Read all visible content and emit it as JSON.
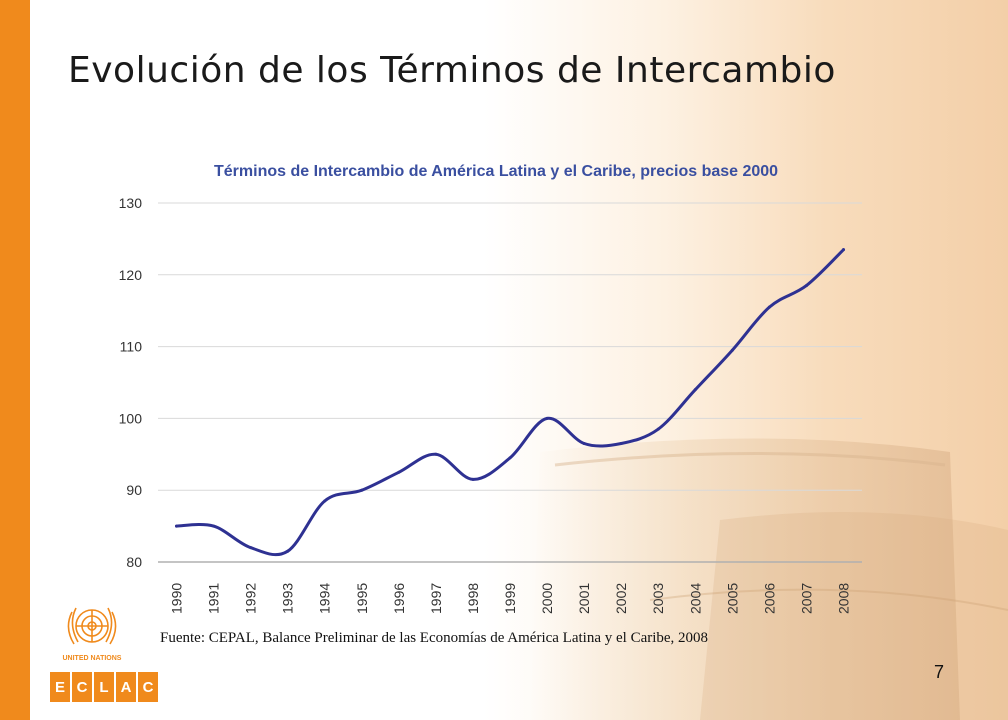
{
  "slide": {
    "title": "Evolución de los Términos de Intercambio",
    "source": "Fuente: CEPAL, Balance Preliminar de las Economías de América Latina y el Caribe, 2008",
    "page_number": "7"
  },
  "logo": {
    "letters": [
      "E",
      "C",
      "L",
      "A",
      "C"
    ]
  },
  "colors": {
    "accent_bar": "#f08a1c",
    "series_line": "#2e3192",
    "chart_title": "#3a4fa0"
  },
  "chart_data": {
    "type": "line",
    "title": "Términos de Intercambio de América Latina y el Caribe, precios base 2000",
    "xlabel": "",
    "ylabel": "",
    "x": [
      "1990",
      "1991",
      "1992",
      "1993",
      "1994",
      "1995",
      "1996",
      "1997",
      "1998",
      "1999",
      "2000",
      "2001",
      "2002",
      "2003",
      "2004",
      "2005",
      "2006",
      "2007",
      "2008"
    ],
    "series": [
      {
        "values": [
          85,
          85,
          82,
          81.5,
          88.5,
          90,
          92.5,
          95,
          91.5,
          94.5,
          100,
          96.5,
          96.5,
          98.5,
          104,
          109.5,
          115.5,
          118.5,
          123.5
        ]
      }
    ],
    "ylim": [
      80,
      130
    ],
    "yticks": [
      80,
      90,
      100,
      110,
      120,
      130
    ],
    "grid": true,
    "legend": "none"
  }
}
